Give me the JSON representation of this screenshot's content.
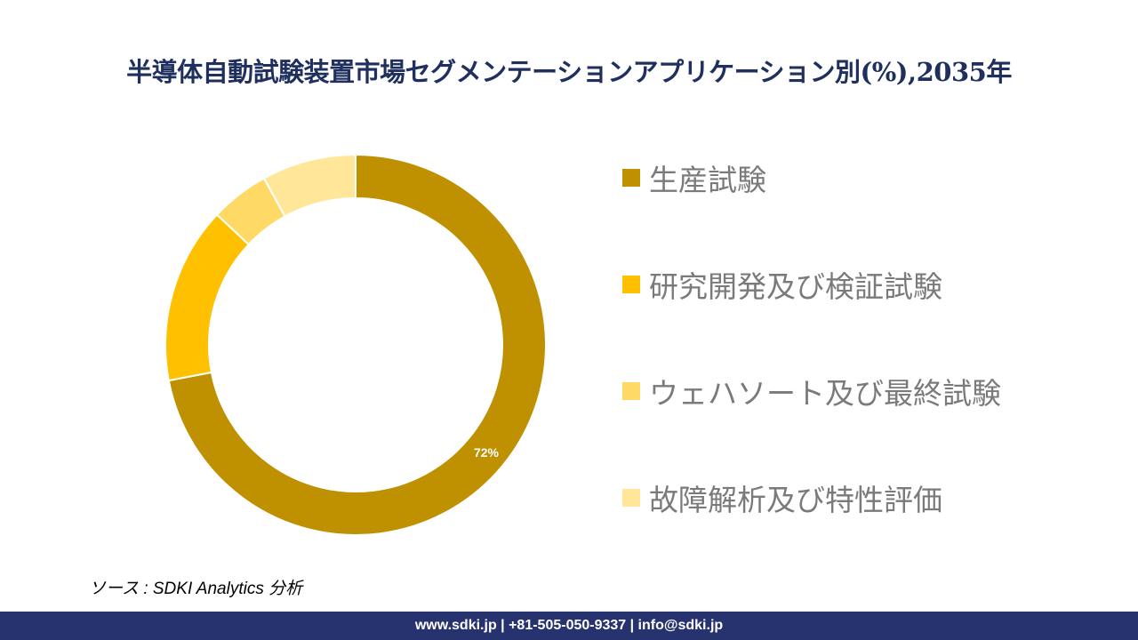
{
  "title": "半導体自動試験装置市場セグメンテーションアプリケーション別(%),2035年",
  "chart_data": {
    "type": "pie",
    "variant": "donut",
    "title": "半導体自動試験装置市場セグメンテーションアプリケーション別(%),2035年",
    "categories": [
      "生産試験",
      "研究開発及び検証試験",
      "ウェハソート及び最終試験",
      "故障解析及び特性評価"
    ],
    "values": [
      72,
      15,
      5,
      8
    ],
    "colors": [
      "#bf9000",
      "#ffc000",
      "#ffd966",
      "#ffe699"
    ],
    "data_labels": [
      "72%",
      "",
      "",
      ""
    ],
    "legend_position": "right"
  },
  "source": "ソース : SDKI Analytics 分析",
  "footer": "www.sdki.jp | +81-505-050-9337 | info@sdki.jp"
}
